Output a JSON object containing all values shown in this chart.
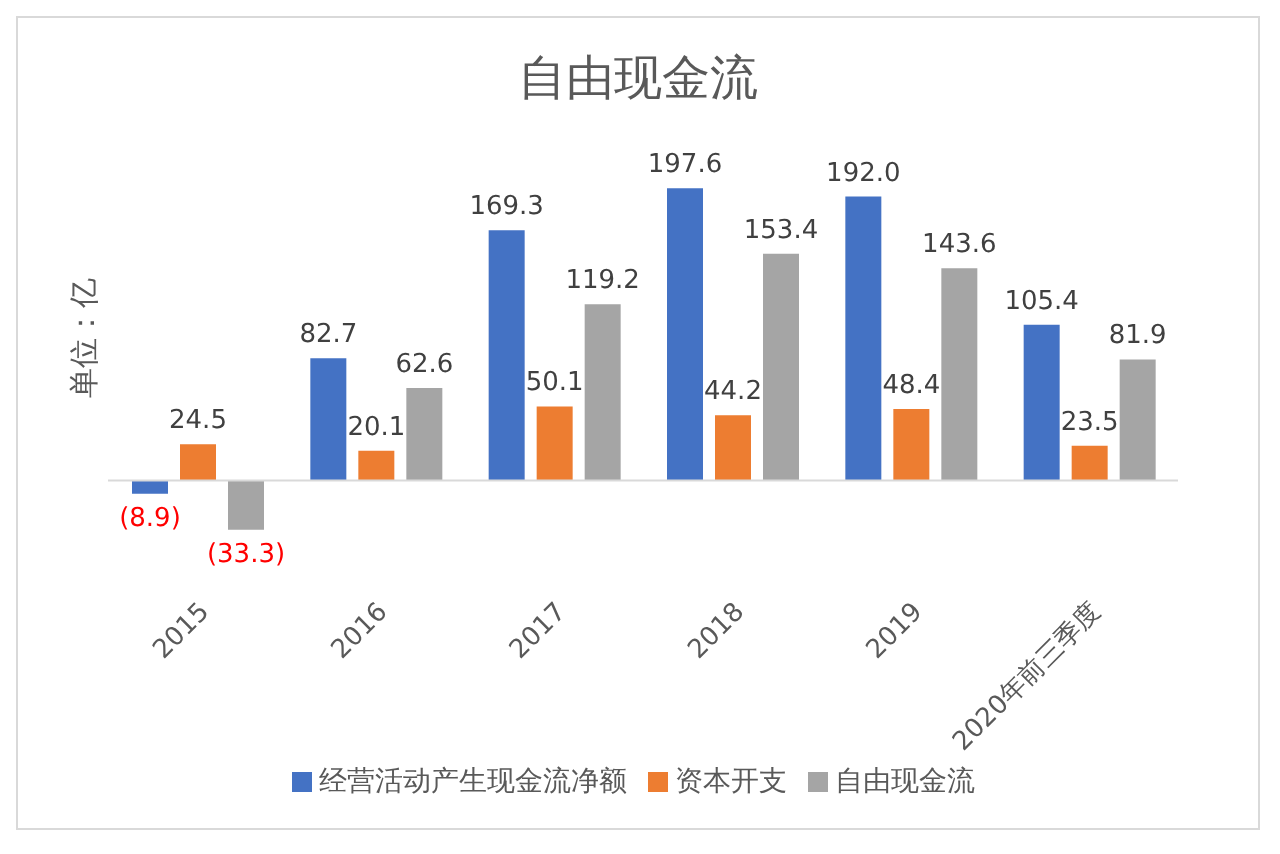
{
  "chart_data": {
    "type": "bar",
    "title": "自由现金流",
    "ylabel": "单位：亿",
    "categories": [
      "2015",
      "2016",
      "2017",
      "2018",
      "2019",
      "2020年前三季度"
    ],
    "series": [
      {
        "name": "经营活动产生现金流净额",
        "color": "#4472c4",
        "values": [
          -8.9,
          82.7,
          169.3,
          197.6,
          192.0,
          105.4
        ],
        "value_labels": [
          "(8.9)",
          "82.7",
          "169.3",
          "197.6",
          "192.0",
          "105.4"
        ]
      },
      {
        "name": "资本开支",
        "color": "#ed7d31",
        "values": [
          24.5,
          20.1,
          50.1,
          44.2,
          48.4,
          23.5
        ],
        "value_labels": [
          "24.5",
          "20.1",
          "50.1",
          "44.2",
          "48.4",
          "23.5"
        ]
      },
      {
        "name": "自由现金流",
        "color": "#a5a5a5",
        "values": [
          -33.3,
          62.6,
          119.2,
          153.4,
          143.6,
          81.9
        ],
        "value_labels": [
          "(33.3)",
          "62.6",
          "119.2",
          "153.4",
          "143.6",
          "81.9"
        ]
      }
    ],
    "legend": "bottom",
    "grid": false
  }
}
